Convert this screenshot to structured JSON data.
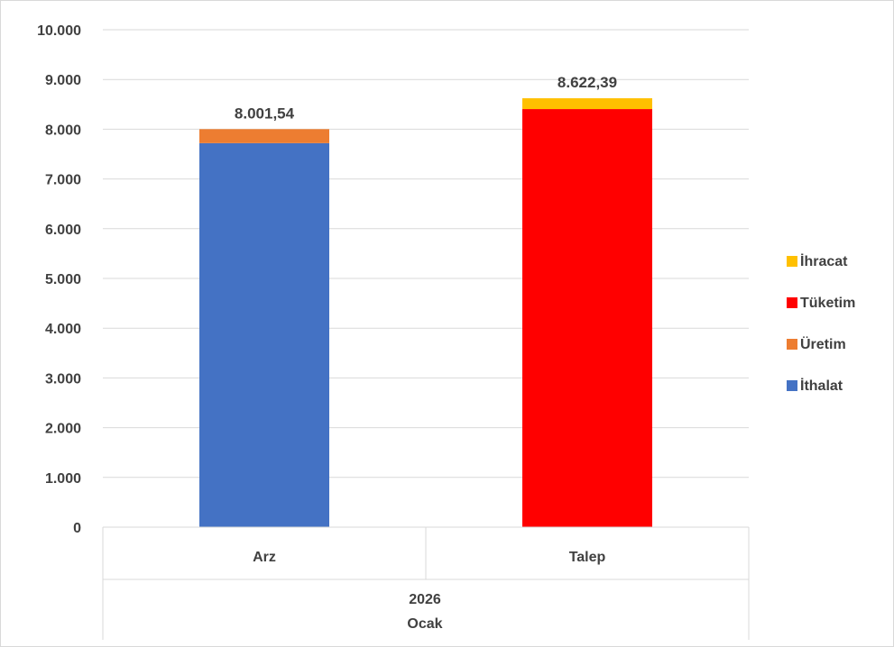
{
  "chart_data": {
    "type": "bar",
    "stacked": true,
    "categories": [
      "Arz",
      "Talep"
    ],
    "group_labels": [
      "2026",
      "Ocak"
    ],
    "ylim": [
      0,
      10000
    ],
    "yticks": [
      "0",
      "1.000",
      "2.000",
      "3.000",
      "4.000",
      "5.000",
      "6.000",
      "7.000",
      "8.000",
      "9.000",
      "10.000"
    ],
    "grid": true,
    "legend_position": "right",
    "series": [
      {
        "name": "İthalat",
        "color": "#4472C4",
        "values": [
          7720,
          0
        ]
      },
      {
        "name": "Üretim",
        "color": "#ED7D31",
        "values": [
          281.54,
          0
        ]
      },
      {
        "name": "Tüketim",
        "color": "#FF0000",
        "values": [
          0,
          8405
        ]
      },
      {
        "name": "İhracat",
        "color": "#FFC000",
        "values": [
          0,
          217.39
        ]
      }
    ],
    "totals": [
      "8.001,54",
      "8.622,39"
    ],
    "legend_order": [
      "İhracat",
      "Tüketim",
      "Üretim",
      "İthalat"
    ]
  }
}
